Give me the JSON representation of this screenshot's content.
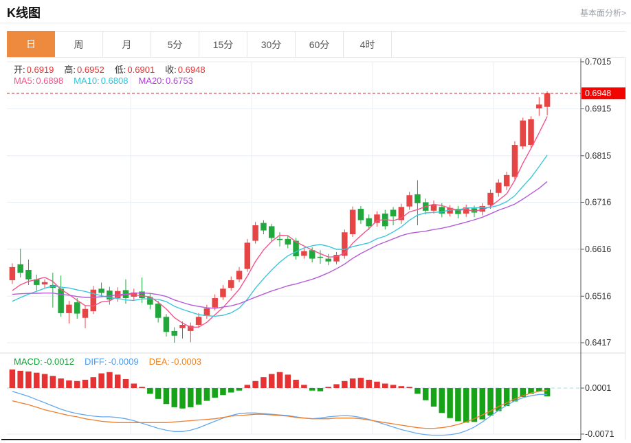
{
  "header": {
    "title": "K线图",
    "link_label": "基本面分析>"
  },
  "tabs": [
    {
      "id": "day",
      "label": "日",
      "active": true
    },
    {
      "id": "week",
      "label": "周",
      "active": false
    },
    {
      "id": "month",
      "label": "月",
      "active": false
    },
    {
      "id": "5min",
      "label": "5分",
      "active": false
    },
    {
      "id": "15min",
      "label": "15分",
      "active": false
    },
    {
      "id": "30min",
      "label": "30分",
      "active": false
    },
    {
      "id": "60min",
      "label": "60分",
      "active": false
    },
    {
      "id": "4hour",
      "label": "4时",
      "active": false
    }
  ],
  "ohlc_legend": {
    "items": [
      {
        "label": "开:",
        "value": "0.6919"
      },
      {
        "label": "高:",
        "value": "0.6952"
      },
      {
        "label": "低:",
        "value": "0.6901"
      },
      {
        "label": "收:",
        "value": "0.6948"
      }
    ],
    "value_color": "#e83030"
  },
  "ma_legend": {
    "items": [
      {
        "label": "MA5:",
        "value": "0.6898",
        "color": "#f4538c"
      },
      {
        "label": "MA10:",
        "value": "0.6808",
        "color": "#2bc4d9"
      },
      {
        "label": "MA20:",
        "value": "0.6753",
        "color": "#b43ae0"
      }
    ]
  },
  "macd_legend": {
    "items": [
      {
        "label": "MACD:",
        "value": "-0.0012",
        "color": "#12a136"
      },
      {
        "label": "DIFF:",
        "value": "-0.0009",
        "color": "#4a9bf5"
      },
      {
        "label": "DEA:",
        "value": "-0.0003",
        "color": "#f0821e"
      }
    ]
  },
  "colors": {
    "candle_red": "#e54545",
    "candle_green": "#21a73c",
    "macd_red": "#e63232",
    "macd_green": "#17a317",
    "ma5": "#f4538c",
    "ma10": "#3cc6dc",
    "ma20": "#b35cd8",
    "diff_line": "#64a8f0",
    "dea_line": "#ef7e2e",
    "grid": "#e8eef5",
    "axis": "#555555",
    "tick_text": "#333333",
    "last_price_line": "#ee1111",
    "badge_bg": "#f20400",
    "badge_text": "#ffffff",
    "zero_dash": "#a9d9ec",
    "panel_divider": "#d8d8d8",
    "bottom_line": "#1a1a1a",
    "right_border": "#e3e3e3"
  },
  "chart_data": {
    "type": "candlestick",
    "title": "K线图 daily candles with MA5/MA10/MA20 and MACD",
    "legend_position": "top-left",
    "main_panel": {
      "ylim": [
        0.6417,
        0.7015
      ],
      "yticks": [
        0.7015,
        0.6915,
        0.6815,
        0.6716,
        0.6616,
        0.6516,
        0.6417
      ],
      "last_price": 0.6948,
      "ma_periods": [
        5,
        10,
        20
      ],
      "candles_oclh": [
        [
          0.655,
          0.6578,
          0.6542,
          0.6586
        ],
        [
          0.6584,
          0.6566,
          0.6556,
          0.6617
        ],
        [
          0.6572,
          0.6552,
          0.654,
          0.6594
        ],
        [
          0.6552,
          0.654,
          0.6528,
          0.6562
        ],
        [
          0.6541,
          0.6546,
          0.6534,
          0.6552
        ],
        [
          0.654,
          0.6534,
          0.6492,
          0.6566
        ],
        [
          0.6532,
          0.648,
          0.6472,
          0.656
        ],
        [
          0.648,
          0.6498,
          0.6458,
          0.6506
        ],
        [
          0.6503,
          0.6479,
          0.6468,
          0.6512
        ],
        [
          0.647,
          0.6489,
          0.6448,
          0.6497
        ],
        [
          0.6484,
          0.653,
          0.6478,
          0.6538
        ],
        [
          0.6532,
          0.6523,
          0.6514,
          0.6545
        ],
        [
          0.6528,
          0.6509,
          0.6498,
          0.6536
        ],
        [
          0.6512,
          0.6527,
          0.6504,
          0.6535
        ],
        [
          0.6529,
          0.6512,
          0.65,
          0.6552
        ],
        [
          0.6515,
          0.6524,
          0.6508,
          0.6532
        ],
        [
          0.6526,
          0.6512,
          0.6502,
          0.6556
        ],
        [
          0.6514,
          0.6498,
          0.6488,
          0.6522
        ],
        [
          0.65,
          0.647,
          0.646,
          0.6506
        ],
        [
          0.6472,
          0.644,
          0.643,
          0.6478
        ],
        [
          0.6442,
          0.6432,
          0.6417,
          0.645
        ],
        [
          0.6448,
          0.6455,
          0.6426,
          0.6462
        ],
        [
          0.6442,
          0.6453,
          0.6418,
          0.646
        ],
        [
          0.6455,
          0.6472,
          0.6448,
          0.648
        ],
        [
          0.6474,
          0.649,
          0.6468,
          0.6498
        ],
        [
          0.6492,
          0.6512,
          0.6486,
          0.652
        ],
        [
          0.6514,
          0.6532,
          0.6508,
          0.654
        ],
        [
          0.6534,
          0.655,
          0.6528,
          0.6558
        ],
        [
          0.6552,
          0.657,
          0.6546,
          0.6578
        ],
        [
          0.6574,
          0.663,
          0.6568,
          0.6638
        ],
        [
          0.6634,
          0.6667,
          0.6628,
          0.6674
        ],
        [
          0.6672,
          0.6656,
          0.6648,
          0.6678
        ],
        [
          0.6665,
          0.664,
          0.6632,
          0.667
        ],
        [
          0.6638,
          0.6636,
          0.6622,
          0.6652
        ],
        [
          0.6638,
          0.6626,
          0.6618,
          0.6645
        ],
        [
          0.6634,
          0.6601,
          0.6594,
          0.664
        ],
        [
          0.6602,
          0.6612,
          0.6596,
          0.662
        ],
        [
          0.6614,
          0.6596,
          0.6588,
          0.662
        ],
        [
          0.66,
          0.6598,
          0.6585,
          0.6614
        ],
        [
          0.6596,
          0.659,
          0.6582,
          0.6606
        ],
        [
          0.659,
          0.6604,
          0.6584,
          0.661
        ],
        [
          0.6602,
          0.6652,
          0.6596,
          0.6658
        ],
        [
          0.6648,
          0.67,
          0.6642,
          0.6707
        ],
        [
          0.6702,
          0.6678,
          0.667,
          0.6708
        ],
        [
          0.6682,
          0.6665,
          0.6657,
          0.669
        ],
        [
          0.6672,
          0.669,
          0.6664,
          0.6697
        ],
        [
          0.6692,
          0.6665,
          0.6658,
          0.67
        ],
        [
          0.67,
          0.6686,
          0.6667,
          0.6706
        ],
        [
          0.6678,
          0.6706,
          0.667,
          0.6713
        ],
        [
          0.6707,
          0.6731,
          0.67,
          0.6738
        ],
        [
          0.6733,
          0.6714,
          0.6667,
          0.6763
        ],
        [
          0.6716,
          0.6698,
          0.669,
          0.6724
        ],
        [
          0.6698,
          0.671,
          0.6692,
          0.672
        ],
        [
          0.6706,
          0.6692,
          0.6684,
          0.6714
        ],
        [
          0.6692,
          0.6704,
          0.6686,
          0.671
        ],
        [
          0.6702,
          0.6691,
          0.6682,
          0.6708
        ],
        [
          0.6692,
          0.6705,
          0.6685,
          0.6711
        ],
        [
          0.6703,
          0.6694,
          0.6684,
          0.6709
        ],
        [
          0.6696,
          0.6708,
          0.6688,
          0.6714
        ],
        [
          0.671,
          0.6736,
          0.6702,
          0.6743
        ],
        [
          0.6736,
          0.6758,
          0.6728,
          0.6765
        ],
        [
          0.675,
          0.6774,
          0.6742,
          0.6781
        ],
        [
          0.677,
          0.6838,
          0.6764,
          0.6846
        ],
        [
          0.6835,
          0.689,
          0.6829,
          0.6896
        ],
        [
          0.6838,
          0.6893,
          0.6832,
          0.6899
        ],
        [
          0.6916,
          0.6924,
          0.69,
          0.694
        ],
        [
          0.6919,
          0.6948,
          0.6901,
          0.6952
        ]
      ],
      "pre_closes": [
        0.654,
        0.6538,
        0.6536,
        0.6535,
        0.6535,
        0.6534,
        0.6534,
        0.6535,
        0.6534,
        0.6529,
        0.6485,
        0.648,
        0.6478,
        0.6482,
        0.6485,
        0.6505,
        0.6515,
        0.652,
        0.6522
      ]
    },
    "macd_panel": {
      "yticks": [
        0.0001,
        -0.0071
      ],
      "hist": [
        0.003,
        0.0028,
        0.0027,
        0.0025,
        0.0023,
        0.002,
        0.0016,
        0.0013,
        0.0012,
        0.0014,
        0.0018,
        0.0024,
        0.0026,
        0.0022,
        0.0015,
        0.0008,
        0.0003,
        -0.0008,
        -0.0016,
        -0.0024,
        -0.0029,
        -0.0031,
        -0.0029,
        -0.0025,
        -0.0019,
        -0.0014,
        -0.001,
        -0.0006,
        -0.0003,
        0.0006,
        0.0012,
        0.0018,
        0.0023,
        0.0026,
        0.0022,
        0.0014,
        0.0006,
        -0.0003,
        -0.0004,
        0.0003,
        0.0007,
        0.0012,
        0.0016,
        0.0017,
        0.0014,
        0.0011,
        0.0008,
        0.0006,
        0.0004,
        0.0003,
        -0.0008,
        -0.0018,
        -0.0028,
        -0.0038,
        -0.0046,
        -0.0051,
        -0.0053,
        -0.0052,
        -0.0048,
        -0.0042,
        -0.0035,
        -0.0027,
        -0.002,
        -0.0013,
        -0.0008,
        -0.0004,
        -0.0012
      ],
      "diff": [
        -0.0004,
        -0.0008,
        -0.0012,
        -0.0017,
        -0.0022,
        -0.0027,
        -0.0032,
        -0.0036,
        -0.0039,
        -0.0041,
        -0.0043,
        -0.0044,
        -0.0044,
        -0.0045,
        -0.0047,
        -0.005,
        -0.0054,
        -0.0058,
        -0.0062,
        -0.0065,
        -0.0067,
        -0.0067,
        -0.0065,
        -0.0061,
        -0.0056,
        -0.0051,
        -0.0046,
        -0.0042,
        -0.0039,
        -0.0038,
        -0.0038,
        -0.0039,
        -0.004,
        -0.0041,
        -0.0042,
        -0.0044,
        -0.0046,
        -0.0047,
        -0.0046,
        -0.0044,
        -0.0043,
        -0.0042,
        -0.0043,
        -0.0045,
        -0.0048,
        -0.0052,
        -0.0056,
        -0.006,
        -0.0064,
        -0.0067,
        -0.007,
        -0.0072,
        -0.0073,
        -0.0073,
        -0.0072,
        -0.007,
        -0.0066,
        -0.006,
        -0.0052,
        -0.0043,
        -0.0034,
        -0.0026,
        -0.0019,
        -0.0014,
        -0.0011,
        -0.0009,
        -0.0009
      ],
      "dea": [
        -0.0019,
        -0.0022,
        -0.0025,
        -0.0029,
        -0.0033,
        -0.0036,
        -0.0039,
        -0.0042,
        -0.0044,
        -0.0047,
        -0.0049,
        -0.0051,
        -0.0052,
        -0.0053,
        -0.0053,
        -0.0053,
        -0.0053,
        -0.0053,
        -0.0053,
        -0.0053,
        -0.0052,
        -0.0051,
        -0.005,
        -0.0049,
        -0.0048,
        -0.0047,
        -0.0045,
        -0.0043,
        -0.0042,
        -0.0041,
        -0.004,
        -0.004,
        -0.0041,
        -0.0042,
        -0.0043,
        -0.0045,
        -0.0046,
        -0.0047,
        -0.0047,
        -0.0047,
        -0.0046,
        -0.0046,
        -0.0046,
        -0.0047,
        -0.0049,
        -0.0051,
        -0.0053,
        -0.0055,
        -0.0057,
        -0.0059,
        -0.0061,
        -0.0062,
        -0.0062,
        -0.0061,
        -0.0059,
        -0.0056,
        -0.0052,
        -0.0047,
        -0.0041,
        -0.0035,
        -0.0028,
        -0.0022,
        -0.0016,
        -0.0011,
        -0.0007,
        -0.0004,
        -0.0003
      ]
    }
  }
}
